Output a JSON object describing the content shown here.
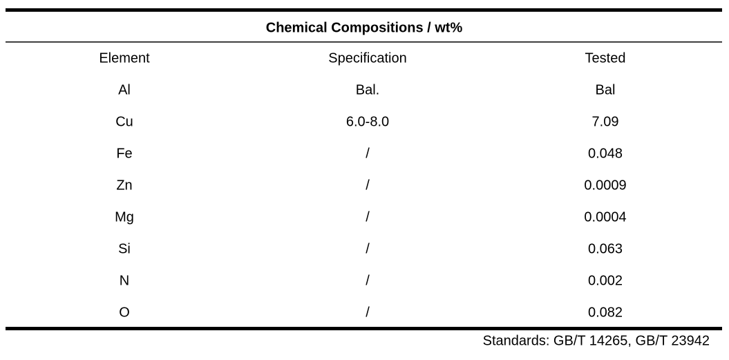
{
  "table": {
    "title": "Chemical Compositions / wt%",
    "columns": [
      "Element",
      "Specification",
      "Tested"
    ],
    "rows": [
      [
        "Al",
        "Bal.",
        "Bal"
      ],
      [
        "Cu",
        "6.0-8.0",
        "7.09"
      ],
      [
        "Fe",
        "/",
        "0.048"
      ],
      [
        "Zn",
        "/",
        "0.0009"
      ],
      [
        "Mg",
        "/",
        "0.0004"
      ],
      [
        "Si",
        "/",
        "0.063"
      ],
      [
        "N",
        "/",
        "0.002"
      ],
      [
        "O",
        "/",
        "0.082"
      ]
    ],
    "footnote": "Standards: GB/T 14265, GB/T 23942"
  }
}
